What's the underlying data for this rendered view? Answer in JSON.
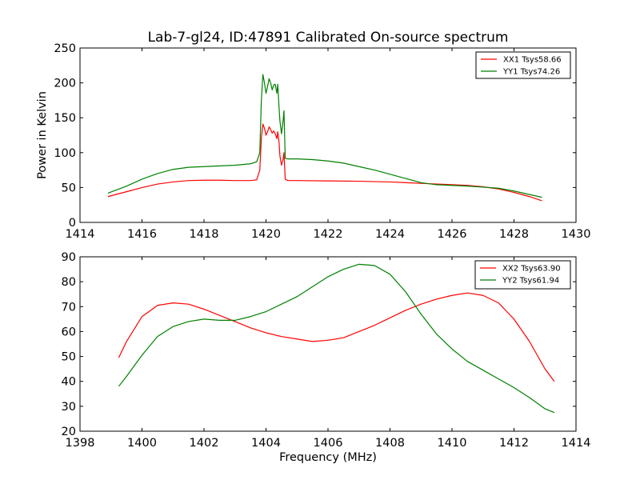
{
  "chart_data": [
    {
      "type": "line",
      "title": "Lab-7-gl24, ID:47891 Calibrated On-source spectrum",
      "xlabel": "",
      "ylabel": "Power in Kelvin",
      "xlim": [
        1414,
        1430
      ],
      "ylim": [
        0,
        250
      ],
      "xticks": [
        1414,
        1416,
        1418,
        1420,
        1422,
        1424,
        1426,
        1428,
        1430
      ],
      "yticks": [
        0,
        50,
        100,
        150,
        200,
        250
      ],
      "grid": false,
      "legend_position": "top-right",
      "series": [
        {
          "name": "XX1 Tsys58.66",
          "color": "#ff0000",
          "points": [
            [
              1414.9,
              37
            ],
            [
              1415.5,
              44
            ],
            [
              1416.0,
              50
            ],
            [
              1416.5,
              55
            ],
            [
              1417.0,
              58
            ],
            [
              1417.5,
              60
            ],
            [
              1418.0,
              60.5
            ],
            [
              1418.5,
              60.5
            ],
            [
              1419.0,
              60
            ],
            [
              1419.5,
              60
            ],
            [
              1419.7,
              61
            ],
            [
              1419.8,
              75
            ],
            [
              1419.85,
              120
            ],
            [
              1419.9,
              141
            ],
            [
              1419.95,
              135
            ],
            [
              1420.0,
              125
            ],
            [
              1420.05,
              130
            ],
            [
              1420.1,
              137
            ],
            [
              1420.15,
              133
            ],
            [
              1420.2,
              128
            ],
            [
              1420.25,
              131
            ],
            [
              1420.3,
              127
            ],
            [
              1420.35,
              120
            ],
            [
              1420.38,
              130
            ],
            [
              1420.42,
              115
            ],
            [
              1420.45,
              95
            ],
            [
              1420.5,
              82
            ],
            [
              1420.55,
              90
            ],
            [
              1420.58,
              100
            ],
            [
              1420.62,
              62
            ],
            [
              1420.7,
              60
            ],
            [
              1421.0,
              60
            ],
            [
              1422.0,
              59.5
            ],
            [
              1423.0,
              59
            ],
            [
              1424.0,
              58
            ],
            [
              1425.0,
              56
            ],
            [
              1426.0,
              54
            ],
            [
              1426.5,
              53
            ],
            [
              1427.0,
              51
            ],
            [
              1427.5,
              48
            ],
            [
              1428.0,
              43
            ],
            [
              1428.5,
              37
            ],
            [
              1428.9,
              31
            ]
          ]
        },
        {
          "name": "YY1 Tsys74.26",
          "color": "#008000",
          "points": [
            [
              1414.9,
              42
            ],
            [
              1415.5,
              52
            ],
            [
              1416.0,
              62
            ],
            [
              1416.5,
              70
            ],
            [
              1417.0,
              76
            ],
            [
              1417.5,
              79
            ],
            [
              1418.0,
              80
            ],
            [
              1418.5,
              81
            ],
            [
              1419.0,
              82
            ],
            [
              1419.5,
              84
            ],
            [
              1419.7,
              87
            ],
            [
              1419.8,
              100
            ],
            [
              1419.85,
              175
            ],
            [
              1419.9,
              212
            ],
            [
              1419.95,
              200
            ],
            [
              1420.0,
              185
            ],
            [
              1420.05,
              195
            ],
            [
              1420.1,
              206
            ],
            [
              1420.15,
              200
            ],
            [
              1420.2,
              190
            ],
            [
              1420.25,
              197
            ],
            [
              1420.3,
              198
            ],
            [
              1420.35,
              185
            ],
            [
              1420.38,
              198
            ],
            [
              1420.42,
              165
            ],
            [
              1420.45,
              145
            ],
            [
              1420.5,
              127
            ],
            [
              1420.55,
              145
            ],
            [
              1420.58,
              160
            ],
            [
              1420.62,
              92
            ],
            [
              1420.7,
              91
            ],
            [
              1421.0,
              91
            ],
            [
              1421.5,
              90
            ],
            [
              1422.0,
              88
            ],
            [
              1422.5,
              85
            ],
            [
              1423.0,
              80
            ],
            [
              1423.5,
              75
            ],
            [
              1424.0,
              69
            ],
            [
              1424.5,
              63
            ],
            [
              1425.0,
              57
            ],
            [
              1425.5,
              54
            ],
            [
              1426.0,
              53
            ],
            [
              1426.5,
              52
            ],
            [
              1427.0,
              50.5
            ],
            [
              1427.5,
              49
            ],
            [
              1428.0,
              45
            ],
            [
              1428.5,
              40
            ],
            [
              1428.9,
              36
            ]
          ]
        }
      ]
    },
    {
      "type": "line",
      "title": "",
      "xlabel": "Frequency (MHz)",
      "ylabel": "",
      "xlim": [
        1398,
        1414
      ],
      "ylim": [
        20,
        90
      ],
      "xticks": [
        1398,
        1400,
        1402,
        1404,
        1406,
        1408,
        1410,
        1412,
        1414
      ],
      "yticks": [
        20,
        30,
        40,
        50,
        60,
        70,
        80,
        90
      ],
      "grid": false,
      "legend_position": "top-right",
      "series": [
        {
          "name": "XX2 Tsys63.90",
          "color": "#ff0000",
          "points": [
            [
              1399.25,
              49.5
            ],
            [
              1399.5,
              56
            ],
            [
              1400.0,
              66
            ],
            [
              1400.5,
              70.5
            ],
            [
              1401.0,
              71.5
            ],
            [
              1401.5,
              71
            ],
            [
              1402.0,
              69
            ],
            [
              1402.5,
              66.5
            ],
            [
              1403.0,
              64
            ],
            [
              1403.5,
              61.5
            ],
            [
              1404.0,
              59.5
            ],
            [
              1404.5,
              58
            ],
            [
              1405.0,
              57
            ],
            [
              1405.5,
              56
            ],
            [
              1406.0,
              56.5
            ],
            [
              1406.5,
              57.5
            ],
            [
              1407.0,
              60
            ],
            [
              1407.5,
              62.5
            ],
            [
              1408.0,
              65.5
            ],
            [
              1408.5,
              68.5
            ],
            [
              1409.0,
              71
            ],
            [
              1409.5,
              73
            ],
            [
              1410.0,
              74.5
            ],
            [
              1410.5,
              75.5
            ],
            [
              1411.0,
              74.5
            ],
            [
              1411.5,
              71.5
            ],
            [
              1412.0,
              65
            ],
            [
              1412.5,
              56
            ],
            [
              1413.0,
              45
            ],
            [
              1413.3,
              40
            ]
          ]
        },
        {
          "name": "YY2 Tsys61.94",
          "color": "#008000",
          "points": [
            [
              1399.25,
              38
            ],
            [
              1399.5,
              42
            ],
            [
              1400.0,
              50.5
            ],
            [
              1400.5,
              58
            ],
            [
              1401.0,
              62
            ],
            [
              1401.5,
              64
            ],
            [
              1402.0,
              65
            ],
            [
              1402.5,
              64.5
            ],
            [
              1403.0,
              64.5
            ],
            [
              1403.5,
              66
            ],
            [
              1404.0,
              68
            ],
            [
              1404.5,
              71
            ],
            [
              1405.0,
              74
            ],
            [
              1405.5,
              78
            ],
            [
              1406.0,
              82
            ],
            [
              1406.5,
              85
            ],
            [
              1407.0,
              87
            ],
            [
              1407.5,
              86.5
            ],
            [
              1408.0,
              83
            ],
            [
              1408.5,
              76
            ],
            [
              1409.0,
              67
            ],
            [
              1409.5,
              59
            ],
            [
              1410.0,
              53
            ],
            [
              1410.5,
              48
            ],
            [
              1411.0,
              44.5
            ],
            [
              1411.5,
              41
            ],
            [
              1412.0,
              37.5
            ],
            [
              1412.5,
              33.5
            ],
            [
              1413.0,
              29
            ],
            [
              1413.3,
              27.5
            ]
          ]
        }
      ]
    }
  ]
}
